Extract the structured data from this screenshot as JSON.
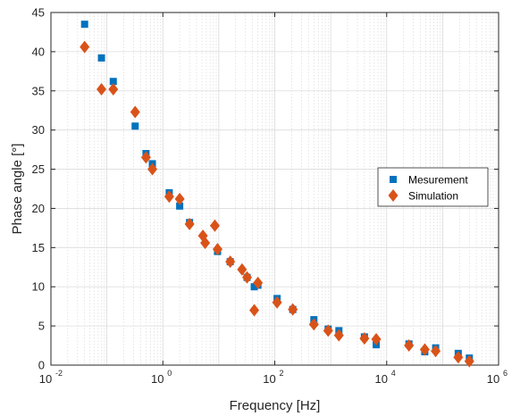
{
  "chart_data": {
    "type": "scatter",
    "title": "",
    "xlabel": "Frequency [Hz]",
    "ylabel": "Phase angle [°]",
    "xscale": "log",
    "xlim": [
      0.01,
      1000000
    ],
    "ylim": [
      0,
      45
    ],
    "x_ticks": [
      {
        "value": 0.01,
        "base": "10",
        "exp": "-2"
      },
      {
        "value": 1,
        "base": "10",
        "exp": "0"
      },
      {
        "value": 100,
        "base": "10",
        "exp": "2"
      },
      {
        "value": 10000,
        "base": "10",
        "exp": "4"
      },
      {
        "value": 1000000,
        "base": "10",
        "exp": "6"
      }
    ],
    "y_ticks": [
      0,
      5,
      10,
      15,
      20,
      25,
      30,
      35,
      40,
      45
    ],
    "grid": true,
    "legend": {
      "placement": "right"
    },
    "series": [
      {
        "name": "Mesurement",
        "marker": "square",
        "color": "#0072BD",
        "points": [
          [
            0.04,
            43.5
          ],
          [
            0.08,
            39.2
          ],
          [
            0.13,
            36.2
          ],
          [
            0.32,
            30.5
          ],
          [
            0.5,
            27.0
          ],
          [
            0.65,
            25.7
          ],
          [
            1.3,
            22.0
          ],
          [
            2.0,
            20.3
          ],
          [
            3.0,
            18.2
          ],
          [
            9.5,
            14.5
          ],
          [
            16,
            13.2
          ],
          [
            32,
            11.2
          ],
          [
            43,
            10.0
          ],
          [
            50,
            10.2
          ],
          [
            110,
            8.5
          ],
          [
            210,
            7.1
          ],
          [
            500,
            5.8
          ],
          [
            900,
            4.6
          ],
          [
            1400,
            4.4
          ],
          [
            4000,
            3.6
          ],
          [
            6500,
            2.6
          ],
          [
            25000,
            2.7
          ],
          [
            48000,
            1.7
          ],
          [
            75000,
            2.2
          ],
          [
            190000,
            1.5
          ],
          [
            300000,
            0.9
          ]
        ]
      },
      {
        "name": "Simulation",
        "marker": "diamond",
        "color": "#D95319",
        "points": [
          [
            0.04,
            40.6
          ],
          [
            0.08,
            35.2
          ],
          [
            0.13,
            35.2
          ],
          [
            0.32,
            32.3
          ],
          [
            0.5,
            26.5
          ],
          [
            0.65,
            25.0
          ],
          [
            1.3,
            21.5
          ],
          [
            2.0,
            21.2
          ],
          [
            3.0,
            18.0
          ],
          [
            5.2,
            16.5
          ],
          [
            5.7,
            15.6
          ],
          [
            8.5,
            17.8
          ],
          [
            9.5,
            14.8
          ],
          [
            16,
            13.2
          ],
          [
            26,
            12.2
          ],
          [
            32,
            11.2
          ],
          [
            43,
            7.0
          ],
          [
            50,
            10.5
          ],
          [
            110,
            8.0
          ],
          [
            210,
            7.1
          ],
          [
            500,
            5.2
          ],
          [
            900,
            4.4
          ],
          [
            1400,
            3.8
          ],
          [
            4000,
            3.4
          ],
          [
            6500,
            3.3
          ],
          [
            25000,
            2.5
          ],
          [
            48000,
            2.0
          ],
          [
            75000,
            1.8
          ],
          [
            190000,
            1.0
          ],
          [
            300000,
            0.5
          ]
        ]
      }
    ]
  }
}
